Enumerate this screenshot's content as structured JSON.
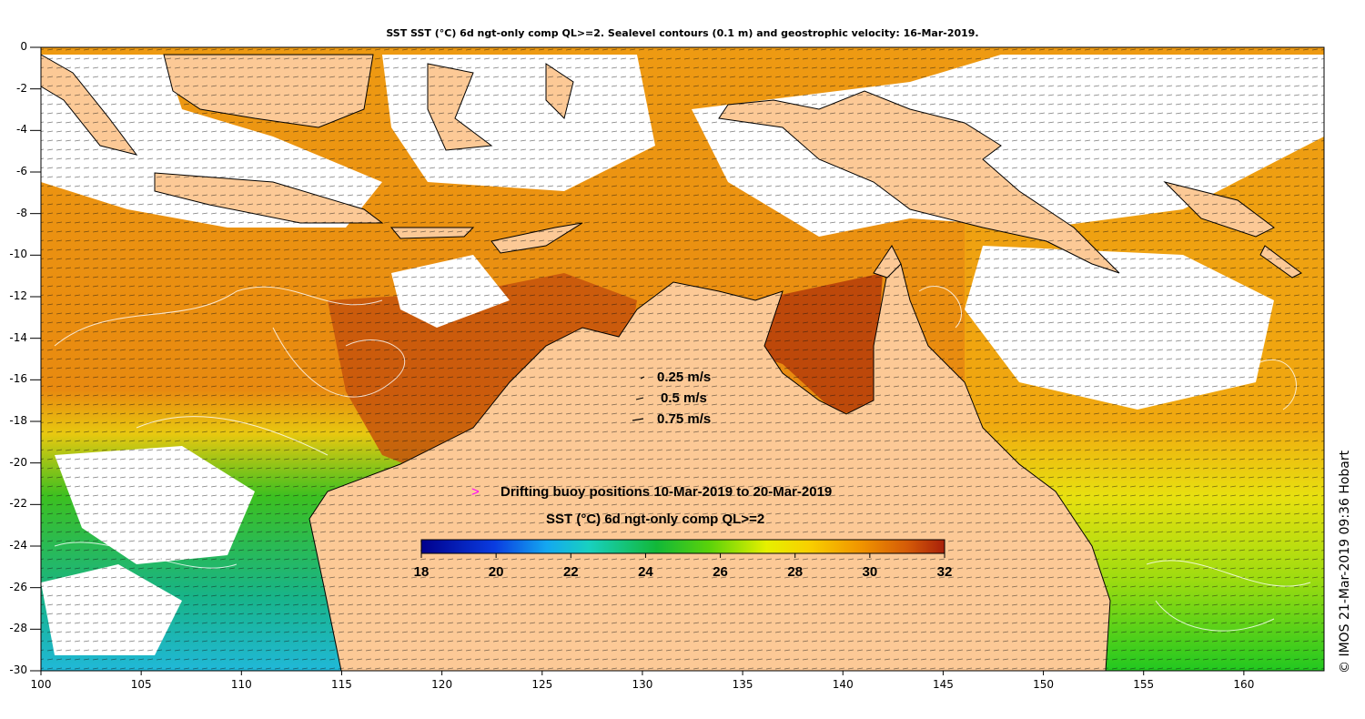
{
  "title": "SST SST (°C) 6d ngt-only comp QL>=2. Sealevel contours (0.1 m) and geostrophic velocity: 16-Mar-2019.",
  "credit": "© IMOS 21-Mar-2019 09:36 Hobart",
  "axes": {
    "x_ticks": [
      "100",
      "105",
      "110",
      "115",
      "120",
      "125",
      "130",
      "135",
      "140",
      "145",
      "150",
      "155",
      "160"
    ],
    "y_ticks": [
      "0",
      "-2",
      "-4",
      "-6",
      "-8",
      "-10",
      "-12",
      "-14",
      "-16",
      "-18",
      "-20",
      "-22",
      "-24",
      "-26",
      "-28",
      "-30"
    ],
    "lon_range": [
      100,
      164
    ],
    "lat_range": [
      -30,
      0
    ]
  },
  "velocity_legend": [
    {
      "label": "0.25 m/s",
      "speed": 0.25
    },
    {
      "label": "0.5 m/s",
      "speed": 0.5
    },
    {
      "label": "0.75 m/s",
      "speed": 0.75
    }
  ],
  "buoy_legend": {
    "symbol": ">",
    "label": "Drifting buoy positions 10-Mar-2019 to 20-Mar-2019",
    "color": "#ff00ff"
  },
  "colorbar": {
    "title": "SST (°C) 6d ngt-only comp QL>=2",
    "ticks": [
      "18",
      "20",
      "22",
      "24",
      "26",
      "28",
      "30",
      "32"
    ],
    "range": [
      18,
      32
    ]
  },
  "colors": {
    "land": "#fcc996",
    "no_data": "#ffffff",
    "coast": "#000000",
    "contour": "#ffffff"
  }
}
